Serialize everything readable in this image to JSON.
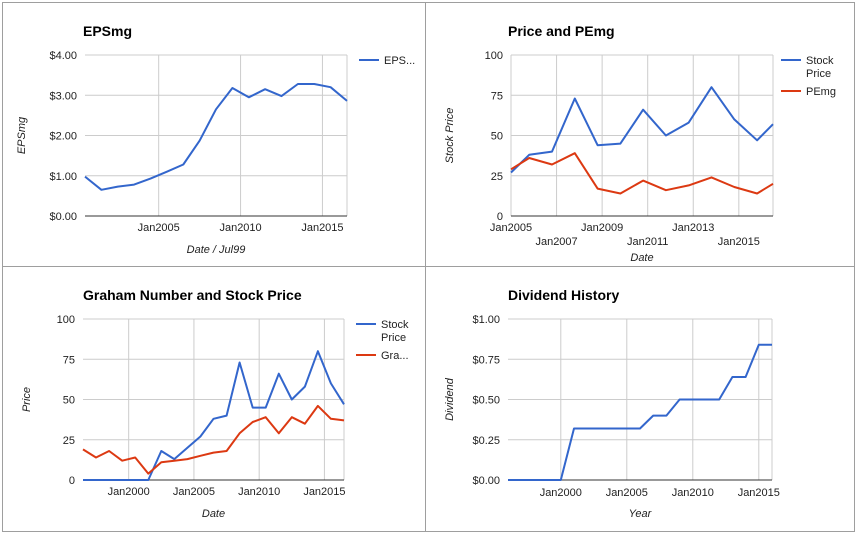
{
  "chart_data": [
    {
      "id": "p0",
      "type": "line",
      "title": "EPSmg",
      "xlabel": "Date / Jul99",
      "ylabel": "EPSmg",
      "xlim": [
        2000.5,
        2016.5
      ],
      "ylim": [
        0,
        4
      ],
      "yticks": [
        {
          "v": 0,
          "label": "$0.00"
        },
        {
          "v": 1,
          "label": "$1.00"
        },
        {
          "v": 2,
          "label": "$2.00"
        },
        {
          "v": 3,
          "label": "$3.00"
        },
        {
          "v": 4,
          "label": "$4.00"
        }
      ],
      "xticks": [
        {
          "v": 2005,
          "label": "Jan2005",
          "row": 0
        },
        {
          "v": 2010,
          "label": "Jan2010",
          "row": 0
        },
        {
          "v": 2015,
          "label": "Jan2015",
          "row": 0
        }
      ],
      "grid": true,
      "legend": "right",
      "series": [
        {
          "name": "EPS...",
          "color": "#3366cc",
          "x": [
            2000.5,
            2001.5,
            2002.5,
            2003.5,
            2004.5,
            2005.5,
            2006.5,
            2007.5,
            2008.5,
            2009.5,
            2010.5,
            2011.5,
            2012.5,
            2013.5,
            2014.5,
            2015.5,
            2016.5
          ],
          "values": [
            0.98,
            0.65,
            0.73,
            0.78,
            0.93,
            1.1,
            1.28,
            1.87,
            2.65,
            3.18,
            2.95,
            3.15,
            2.98,
            3.28,
            3.28,
            3.2,
            2.86
          ]
        }
      ]
    },
    {
      "id": "p1",
      "type": "line",
      "title": "Price and PEmg",
      "xlabel": "Date",
      "ylabel": "Stock Price",
      "xlim": [
        2005,
        2016.5
      ],
      "ylim": [
        0,
        100
      ],
      "yticks": [
        {
          "v": 0,
          "label": "0"
        },
        {
          "v": 25,
          "label": "25"
        },
        {
          "v": 50,
          "label": "50"
        },
        {
          "v": 75,
          "label": "75"
        },
        {
          "v": 100,
          "label": "100"
        }
      ],
      "xticks": [
        {
          "v": 2005,
          "label": "Jan2005",
          "row": 0
        },
        {
          "v": 2007,
          "label": "Jan2007",
          "row": 1
        },
        {
          "v": 2009,
          "label": "Jan2009",
          "row": 0
        },
        {
          "v": 2011,
          "label": "Jan2011",
          "row": 1
        },
        {
          "v": 2013,
          "label": "Jan2013",
          "row": 0
        },
        {
          "v": 2015,
          "label": "Jan2015",
          "row": 1
        }
      ],
      "grid": true,
      "legend": "right",
      "series": [
        {
          "name": "Stock Price",
          "legend_lines": [
            "Stock",
            "Price"
          ],
          "color": "#3366cc",
          "x": [
            2005,
            2005.8,
            2006.8,
            2007.8,
            2008.8,
            2009.8,
            2010.8,
            2011.8,
            2012.8,
            2013.8,
            2014.8,
            2015.8,
            2016.5
          ],
          "values": [
            27,
            38,
            40,
            73,
            44,
            45,
            66,
            50,
            58,
            80,
            60,
            47,
            57
          ]
        },
        {
          "name": "PEmg",
          "legend_lines": [
            "PEmg"
          ],
          "color": "#dc3912",
          "x": [
            2005,
            2005.8,
            2006.8,
            2007.8,
            2008.8,
            2009.8,
            2010.8,
            2011.8,
            2012.8,
            2013.8,
            2014.8,
            2015.8,
            2016.5
          ],
          "values": [
            29,
            36,
            32,
            39,
            17,
            14,
            22,
            16,
            19,
            24,
            18,
            14,
            20
          ]
        }
      ]
    },
    {
      "id": "p2",
      "type": "line",
      "title": "Graham Number and Stock Price",
      "xlabel": "Date",
      "ylabel": "Price",
      "xlim": [
        1996.5,
        2016.5
      ],
      "ylim": [
        0,
        100
      ],
      "yticks": [
        {
          "v": 0,
          "label": "0"
        },
        {
          "v": 25,
          "label": "25"
        },
        {
          "v": 50,
          "label": "50"
        },
        {
          "v": 75,
          "label": "75"
        },
        {
          "v": 100,
          "label": "100"
        }
      ],
      "xticks": [
        {
          "v": 2000,
          "label": "Jan2000",
          "row": 0
        },
        {
          "v": 2005,
          "label": "Jan2005",
          "row": 0
        },
        {
          "v": 2010,
          "label": "Jan2010",
          "row": 0
        },
        {
          "v": 2015,
          "label": "Jan2015",
          "row": 0
        }
      ],
      "grid": true,
      "legend": "right",
      "series": [
        {
          "name": "Stock Price",
          "legend_lines": [
            "Stock",
            "Price"
          ],
          "color": "#3366cc",
          "x": [
            1996.5,
            1997.5,
            1998.5,
            1999.5,
            2000.5,
            2001.5,
            2002.5,
            2003.5,
            2004.5,
            2005.5,
            2006.5,
            2007.5,
            2008.5,
            2009.5,
            2010.5,
            2011.5,
            2012.5,
            2013.5,
            2014.5,
            2015.5,
            2016.5
          ],
          "values": [
            0,
            0,
            0,
            0,
            0,
            0,
            18,
            13,
            20,
            27,
            38,
            40,
            73,
            45,
            45,
            66,
            50,
            58,
            80,
            60,
            47
          ]
        },
        {
          "name": "Gra...",
          "legend_lines": [
            "Gra..."
          ],
          "color": "#dc3912",
          "x": [
            1996.5,
            1997.5,
            1998.5,
            1999.5,
            2000.5,
            2001.5,
            2002.5,
            2003.5,
            2004.5,
            2005.5,
            2006.5,
            2007.5,
            2008.5,
            2009.5,
            2010.5,
            2011.5,
            2012.5,
            2013.5,
            2014.5,
            2015.5,
            2016.5
          ],
          "values": [
            19,
            14,
            18,
            12,
            14,
            4,
            11,
            12,
            13,
            15,
            17,
            18,
            29,
            36,
            39,
            29,
            39,
            35,
            46,
            38,
            37
          ]
        }
      ]
    },
    {
      "id": "p3",
      "type": "line",
      "title": "Dividend History",
      "xlabel": "Year",
      "ylabel": "Dividend",
      "xlim": [
        1996,
        2016
      ],
      "ylim": [
        0,
        1
      ],
      "yticks": [
        {
          "v": 0,
          "label": "$0.00"
        },
        {
          "v": 0.25,
          "label": "$0.25"
        },
        {
          "v": 0.5,
          "label": "$0.50"
        },
        {
          "v": 0.75,
          "label": "$0.75"
        },
        {
          "v": 1,
          "label": "$1.00"
        }
      ],
      "xticks": [
        {
          "v": 2000,
          "label": "Jan2000",
          "row": 0
        },
        {
          "v": 2005,
          "label": "Jan2005",
          "row": 0
        },
        {
          "v": 2010,
          "label": "Jan2010",
          "row": 0
        },
        {
          "v": 2015,
          "label": "Jan2015",
          "row": 0
        }
      ],
      "grid": true,
      "legend": "none",
      "series": [
        {
          "name": "",
          "color": "#3366cc",
          "x": [
            1996,
            1997,
            1998,
            1999,
            2000,
            2001,
            2002,
            2003,
            2004,
            2005,
            2006,
            2007,
            2008,
            2009,
            2010,
            2011,
            2012,
            2013,
            2014,
            2015,
            2016
          ],
          "values": [
            0,
            0,
            0,
            0,
            0,
            0.32,
            0.32,
            0.32,
            0.32,
            0.32,
            0.32,
            0.4,
            0.4,
            0.5,
            0.5,
            0.5,
            0.5,
            0.64,
            0.64,
            0.84,
            0.84
          ]
        }
      ]
    }
  ]
}
